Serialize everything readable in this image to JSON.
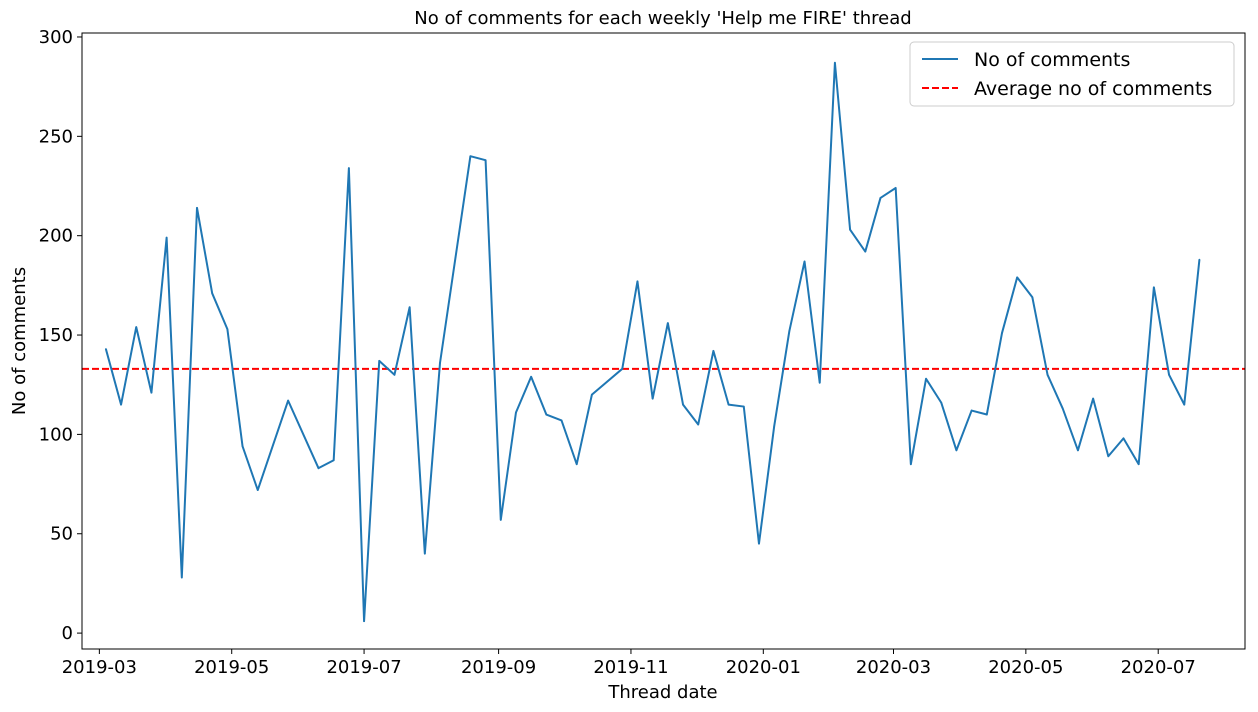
{
  "chart_data": {
    "type": "line",
    "title": "No of comments for each weekly 'Help me FIRE' thread",
    "xlabel": "Thread date",
    "ylabel": "No of comments",
    "ylim": [
      -8,
      302
    ],
    "xlim": [
      "2019-02-21",
      "2020-08-10"
    ],
    "y_ticks": [
      0,
      50,
      100,
      150,
      200,
      250,
      300
    ],
    "x_ticks": [
      "2019-03-01",
      "2019-05-01",
      "2019-07-01",
      "2019-09-01",
      "2019-11-01",
      "2020-01-01",
      "2020-03-01",
      "2020-05-01",
      "2020-07-01"
    ],
    "x_tick_labels": [
      "2019-03",
      "2019-05",
      "2019-07",
      "2019-09",
      "2019-11",
      "2020-01",
      "2020-03",
      "2020-05",
      "2020-07"
    ],
    "grid": false,
    "legend_position": "top-right",
    "series": [
      {
        "name": "No of comments",
        "color": "#1f77b4",
        "style": "solid",
        "x": [
          "2019-03-04",
          "2019-03-11",
          "2019-03-18",
          "2019-03-25",
          "2019-04-01",
          "2019-04-08",
          "2019-04-15",
          "2019-04-22",
          "2019-04-29",
          "2019-05-06",
          "2019-05-13",
          "2019-05-27",
          "2019-06-10",
          "2019-06-17",
          "2019-06-24",
          "2019-07-01",
          "2019-07-08",
          "2019-07-15",
          "2019-07-22",
          "2019-07-29",
          "2019-08-05",
          "2019-08-19",
          "2019-08-26",
          "2019-09-02",
          "2019-09-09",
          "2019-09-16",
          "2019-09-23",
          "2019-09-30",
          "2019-10-07",
          "2019-10-14",
          "2019-10-28",
          "2019-11-04",
          "2019-11-11",
          "2019-11-18",
          "2019-11-25",
          "2019-12-02",
          "2019-12-09",
          "2019-12-16",
          "2019-12-23",
          "2019-12-30",
          "2020-01-06",
          "2020-01-13",
          "2020-01-20",
          "2020-01-27",
          "2020-02-03",
          "2020-02-10",
          "2020-02-17",
          "2020-02-24",
          "2020-03-02",
          "2020-03-09",
          "2020-03-16",
          "2020-03-23",
          "2020-03-30",
          "2020-04-06",
          "2020-04-13",
          "2020-04-20",
          "2020-04-27",
          "2020-05-04",
          "2020-05-11",
          "2020-05-18",
          "2020-05-25",
          "2020-06-01",
          "2020-06-08",
          "2020-06-15",
          "2020-06-22",
          "2020-06-29",
          "2020-07-06",
          "2020-07-13",
          "2020-07-20"
        ],
        "values": [
          143,
          115,
          154,
          121,
          199,
          28,
          214,
          171,
          153,
          94,
          72,
          117,
          83,
          87,
          234,
          6,
          137,
          130,
          164,
          40,
          136,
          240,
          238,
          57,
          111,
          129,
          110,
          107,
          85,
          120,
          133,
          177,
          118,
          156,
          115,
          105,
          142,
          115,
          114,
          45,
          104,
          152,
          187,
          126,
          287,
          203,
          192,
          219,
          224,
          85,
          128,
          116,
          92,
          112,
          110,
          151,
          179,
          169,
          130,
          113,
          92,
          118,
          89,
          98,
          85,
          174,
          130,
          115,
          188
        ]
      },
      {
        "name": "Average no of comments",
        "color": "#ff0000",
        "style": "dashed",
        "value": 133
      }
    ]
  }
}
